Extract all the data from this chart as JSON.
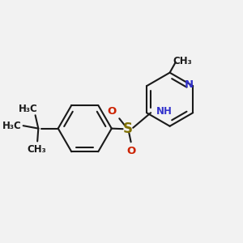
{
  "bg_color": "#f2f2f2",
  "bond_color": "#1a1a1a",
  "nitrogen_color": "#3333cc",
  "oxygen_color": "#cc2200",
  "sulfur_color": "#807000",
  "lw": 1.5,
  "dbo": 0.018,
  "fs": 8.5,
  "fs_s": 11,
  "xlim": [
    0.0,
    1.0
  ],
  "ylim": [
    0.0,
    1.0
  ]
}
